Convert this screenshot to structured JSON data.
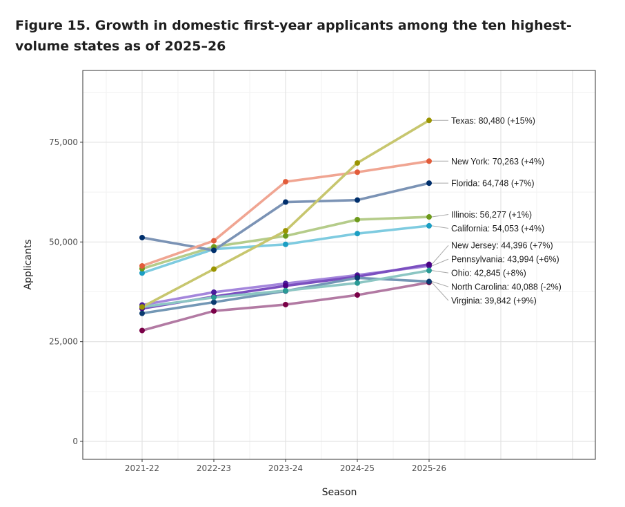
{
  "figure": {
    "title": "Figure 15. Growth in domestic first-year applicants among the ten highest-volume states as of 2025–26"
  },
  "chart_data": {
    "type": "line",
    "title": "Figure 15. Growth in domestic first-year applicants among the ten highest-volume states as of 2025–26",
    "xlabel": "Season",
    "ylabel": "Applicants",
    "categories": [
      "2021-22",
      "2022-23",
      "2023-24",
      "2024-25",
      "2025-26"
    ],
    "yticks": [
      0,
      25000,
      50000,
      75000
    ],
    "ytick_labels": [
      "0",
      "25,000",
      "50,000",
      "75,000"
    ],
    "ylim": [
      -4500,
      93000
    ],
    "grid": true,
    "series": [
      {
        "name": "Pennsylvania",
        "values": [
          34200,
          37400,
          39600,
          41700,
          43994
        ],
        "point_color": "#4b1d9e",
        "line_color": "#a486dc",
        "label": "Pennsylvania: 43,994 (+6%)"
      },
      {
        "name": "New Jersey",
        "values": [
          33300,
          36300,
          39000,
          41300,
          44396
        ],
        "point_color": "#4b0082",
        "line_color": "#7b4fc0",
        "label": "New Jersey: 44,396 (+7%)"
      },
      {
        "name": "Virginia",
        "values": [
          27800,
          32700,
          34300,
          36700,
          39842
        ],
        "point_color": "#7a0047",
        "line_color": "#b27aa3",
        "label": "Virginia: 39,842 (+9%)"
      },
      {
        "name": "North Carolina",
        "values": [
          32100,
          34900,
          37700,
          41000,
          40088
        ],
        "point_color": "#0a3a70",
        "line_color": "#7397b5",
        "label": "North Carolina: 40,088 (-2%)"
      },
      {
        "name": "Ohio",
        "values": [
          33700,
          36100,
          37800,
          39700,
          42845
        ],
        "point_color": "#2a9a95",
        "line_color": "#8cc6c3",
        "label": "Ohio: 42,845 (+8%)"
      },
      {
        "name": "California",
        "values": [
          42200,
          48200,
          49400,
          52100,
          54053
        ],
        "point_color": "#1b9ec3",
        "line_color": "#7ecbe0",
        "label": "California: 54,053 (+4%)"
      },
      {
        "name": "Illinois",
        "values": [
          43300,
          48800,
          51500,
          55600,
          56277
        ],
        "point_color": "#6d9a1b",
        "line_color": "#b5cc8a",
        "label": "Illinois: 56,277 (+1%)"
      },
      {
        "name": "Florida",
        "values": [
          51100,
          47900,
          60000,
          60500,
          64748
        ],
        "point_color": "#002f6c",
        "line_color": "#7b93b5",
        "label": "Florida: 64,748 (+7%)"
      },
      {
        "name": "New York",
        "values": [
          44000,
          50300,
          65100,
          67500,
          70263
        ],
        "point_color": "#e25c3a",
        "line_color": "#f0a592",
        "label": "New York: 70,263 (+4%)"
      },
      {
        "name": "Texas",
        "values": [
          33700,
          43200,
          52800,
          69800,
          80480
        ],
        "point_color": "#9a9400",
        "line_color": "#c7c66e",
        "label": "Texas: 80,480 (+15%)"
      }
    ]
  }
}
